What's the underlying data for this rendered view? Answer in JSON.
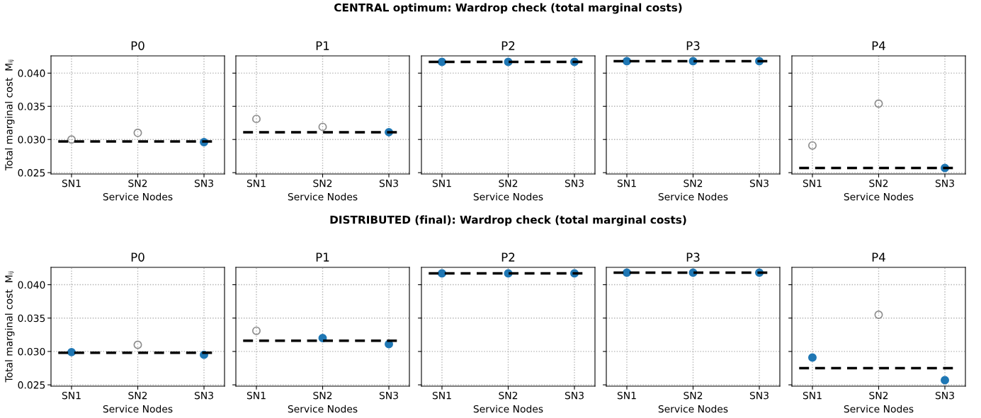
{
  "chart_data": [
    {
      "type": "scatter",
      "title": "P0",
      "annotations": [
        "CENTRAL optimum: Wardrop check (total marginal costs)"
      ],
      "xlabel": "Service Nodes",
      "ylabel": "Total marginal cost  Mᵢⱼ",
      "categories": [
        "SN1",
        "SN2",
        "SN3"
      ],
      "ylim": [
        0.0248,
        0.0426
      ],
      "yticks": [
        {
          "value": 0.025,
          "label": "0.025"
        },
        {
          "value": 0.03,
          "label": "0.030"
        },
        {
          "value": 0.035,
          "label": "0.035"
        },
        {
          "value": 0.04,
          "label": "0.040"
        }
      ],
      "grid": true,
      "marker": "circle",
      "series": [
        {
          "color": "#1f77b4",
          "values": [
            null,
            null,
            0.0296
          ]
        },
        {
          "color": "#808080",
          "values": [
            0.03,
            0.031,
            null
          ]
        }
      ],
      "ref_lines": [
        {
          "axis": "y",
          "value": 0.0297,
          "color": "#000000",
          "line_style": "dashed"
        }
      ]
    },
    {
      "type": "scatter",
      "title": "P1",
      "xlabel": "Service Nodes",
      "categories": [
        "SN1",
        "SN2",
        "SN3"
      ],
      "ylim": [
        0.0248,
        0.0426
      ],
      "yticks": [
        0.025,
        0.03,
        0.035,
        0.04
      ],
      "tick_labels": "x",
      "grid": true,
      "marker": "circle",
      "series": [
        {
          "color": "#1f77b4",
          "values": [
            null,
            null,
            0.0311
          ]
        },
        {
          "color": "#808080",
          "values": [
            0.0331,
            0.0319,
            null
          ]
        }
      ],
      "ref_lines": [
        {
          "axis": "y",
          "value": 0.0311,
          "color": "#000000",
          "line_style": "dashed"
        }
      ]
    },
    {
      "type": "scatter",
      "title": "P2",
      "xlabel": "Service Nodes",
      "categories": [
        "SN1",
        "SN2",
        "SN3"
      ],
      "ylim": [
        0.0248,
        0.0426
      ],
      "yticks": [
        0.025,
        0.03,
        0.035,
        0.04
      ],
      "tick_labels": "x",
      "grid": true,
      "marker": "circle",
      "series": [
        {
          "color": "#1f77b4",
          "values": [
            0.0417,
            0.0417,
            0.0417
          ]
        }
      ],
      "ref_lines": [
        {
          "axis": "y",
          "value": 0.0417,
          "color": "#000000",
          "line_style": "dashed"
        }
      ]
    },
    {
      "type": "scatter",
      "title": "P3",
      "xlabel": "Service Nodes",
      "categories": [
        "SN1",
        "SN2",
        "SN3"
      ],
      "ylim": [
        0.0248,
        0.0426
      ],
      "yticks": [
        0.025,
        0.03,
        0.035,
        0.04
      ],
      "tick_labels": "x",
      "grid": true,
      "marker": "circle",
      "series": [
        {
          "color": "#1f77b4",
          "values": [
            0.0418,
            0.0418,
            0.0418
          ]
        }
      ],
      "ref_lines": [
        {
          "axis": "y",
          "value": 0.0418,
          "color": "#000000",
          "line_style": "dashed"
        }
      ]
    },
    {
      "type": "scatter",
      "title": "P4",
      "xlabel": "Service Nodes",
      "categories": [
        "SN1",
        "SN2",
        "SN3"
      ],
      "ylim": [
        0.0248,
        0.0426
      ],
      "yticks": [
        0.025,
        0.03,
        0.035,
        0.04
      ],
      "tick_labels": "x",
      "grid": true,
      "marker": "circle",
      "series": [
        {
          "color": "#1f77b4",
          "values": [
            null,
            null,
            0.0257
          ]
        },
        {
          "color": "#808080",
          "values": [
            0.0291,
            0.0354,
            null
          ]
        }
      ],
      "ref_lines": [
        {
          "axis": "y",
          "value": 0.0257,
          "color": "#000000",
          "line_style": "dashed"
        }
      ]
    },
    {
      "type": "scatter",
      "title": "P0",
      "annotations": [
        "DISTRIBUTED (final): Wardrop check (total marginal costs)"
      ],
      "xlabel": "Service Nodes",
      "ylabel": "Total marginal cost  Mᵢⱼ",
      "categories": [
        "SN1",
        "SN2",
        "SN3"
      ],
      "ylim": [
        0.0248,
        0.0426
      ],
      "yticks": [
        {
          "value": 0.025,
          "label": "0.025"
        },
        {
          "value": 0.03,
          "label": "0.030"
        },
        {
          "value": 0.035,
          "label": "0.035"
        },
        {
          "value": 0.04,
          "label": "0.040"
        }
      ],
      "grid": true,
      "marker": "circle",
      "series": [
        {
          "color": "#1f77b4",
          "values": [
            0.0299,
            null,
            0.0295
          ]
        },
        {
          "color": "#808080",
          "values": [
            null,
            0.031,
            null
          ]
        }
      ],
      "ref_lines": [
        {
          "axis": "y",
          "value": 0.0298,
          "color": "#000000",
          "line_style": "dashed"
        }
      ]
    },
    {
      "type": "scatter",
      "title": "P1",
      "xlabel": "Service Nodes",
      "categories": [
        "SN1",
        "SN2",
        "SN3"
      ],
      "ylim": [
        0.0248,
        0.0426
      ],
      "yticks": [
        0.025,
        0.03,
        0.035,
        0.04
      ],
      "tick_labels": "x",
      "grid": true,
      "marker": "circle",
      "series": [
        {
          "color": "#1f77b4",
          "values": [
            null,
            0.032,
            0.0311
          ]
        },
        {
          "color": "#808080",
          "values": [
            0.0331,
            null,
            null
          ]
        }
      ],
      "ref_lines": [
        {
          "axis": "y",
          "value": 0.0316,
          "color": "#000000",
          "line_style": "dashed"
        }
      ]
    },
    {
      "type": "scatter",
      "title": "P2",
      "xlabel": "Service Nodes",
      "categories": [
        "SN1",
        "SN2",
        "SN3"
      ],
      "ylim": [
        0.0248,
        0.0426
      ],
      "yticks": [
        0.025,
        0.03,
        0.035,
        0.04
      ],
      "tick_labels": "x",
      "grid": true,
      "marker": "circle",
      "series": [
        {
          "color": "#1f77b4",
          "values": [
            0.0417,
            0.0417,
            0.0417
          ]
        }
      ],
      "ref_lines": [
        {
          "axis": "y",
          "value": 0.0417,
          "color": "#000000",
          "line_style": "dashed"
        }
      ]
    },
    {
      "type": "scatter",
      "title": "P3",
      "xlabel": "Service Nodes",
      "categories": [
        "SN1",
        "SN2",
        "SN3"
      ],
      "ylim": [
        0.0248,
        0.0426
      ],
      "yticks": [
        0.025,
        0.03,
        0.035,
        0.04
      ],
      "tick_labels": "x",
      "grid": true,
      "marker": "circle",
      "series": [
        {
          "color": "#1f77b4",
          "values": [
            0.0418,
            0.0418,
            0.0418
          ]
        }
      ],
      "ref_lines": [
        {
          "axis": "y",
          "value": 0.0418,
          "color": "#000000",
          "line_style": "dashed"
        }
      ]
    },
    {
      "type": "scatter",
      "title": "P4",
      "xlabel": "Service Nodes",
      "categories": [
        "SN1",
        "SN2",
        "SN3"
      ],
      "ylim": [
        0.0248,
        0.0426
      ],
      "yticks": [
        0.025,
        0.03,
        0.035,
        0.04
      ],
      "tick_labels": "x",
      "grid": true,
      "marker": "circle",
      "series": [
        {
          "color": "#1f77b4",
          "values": [
            0.0291,
            null,
            0.0257
          ]
        },
        {
          "color": "#808080",
          "values": [
            null,
            0.0355,
            null
          ]
        }
      ],
      "ref_lines": [
        {
          "axis": "y",
          "value": 0.0275,
          "color": "#000000",
          "line_style": "dashed"
        }
      ]
    }
  ]
}
